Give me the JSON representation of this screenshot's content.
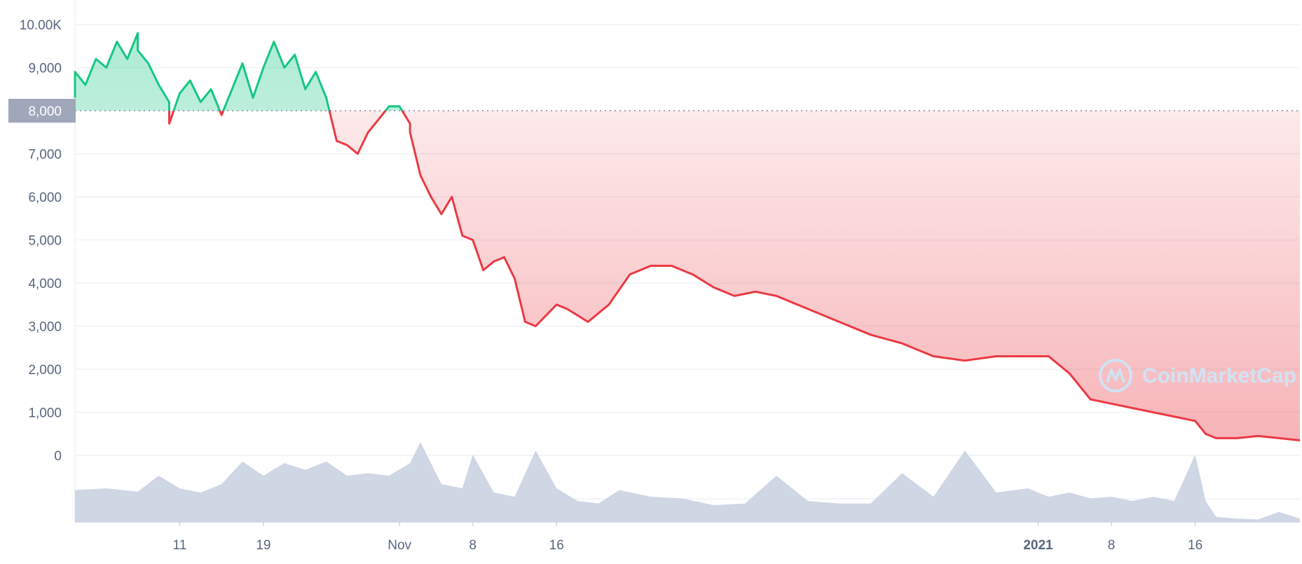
{
  "colors": {
    "up": "#16c784",
    "down": "#ea3943",
    "volume": "#cfd6e4",
    "grid": "#eff2f5",
    "tick_text": "#58667e",
    "baseline_label_bg": "#a1a7bb",
    "watermark": "#cfe3f5"
  },
  "watermark": {
    "text": "CoinMarketCap",
    "icon": "coinmarketcap-logo-icon"
  },
  "chart_data": {
    "type": "area",
    "baseline": {
      "value": 8000,
      "label": "8,000"
    },
    "ylim": [
      0,
      10000
    ],
    "y_ticks": [
      {
        "value": 10000,
        "label": "10.00K"
      },
      {
        "value": 9000,
        "label": "9,000"
      },
      {
        "value": 8000,
        "label": "8,000"
      },
      {
        "value": 7000,
        "label": "7,000"
      },
      {
        "value": 6000,
        "label": "6,000"
      },
      {
        "value": 5000,
        "label": "5,000"
      },
      {
        "value": 4000,
        "label": "4,000"
      },
      {
        "value": 3000,
        "label": "3,000"
      },
      {
        "value": 2000,
        "label": "2,000"
      },
      {
        "value": 1000,
        "label": "1,000"
      },
      {
        "value": 0,
        "label": "0"
      }
    ],
    "xlim": [
      "2020-10-01",
      "2021-01-26"
    ],
    "x_ticks": [
      {
        "date": "2020-10-11",
        "label": "11",
        "bold": false
      },
      {
        "date": "2020-10-19",
        "label": "19",
        "bold": false
      },
      {
        "date": "2020-11-01",
        "label": "Nov",
        "bold": false
      },
      {
        "date": "2020-11-08",
        "label": "8",
        "bold": false
      },
      {
        "date": "2020-11-16",
        "label": "16",
        "bold": false
      },
      {
        "date": "2021-01-01",
        "label": "2021",
        "bold": true
      },
      {
        "date": "2021-01-08",
        "label": "8",
        "bold": false
      },
      {
        "date": "2021-01-16",
        "label": "16",
        "bold": false
      }
    ],
    "price_series": {
      "dates": [
        "2020-10-01",
        "2020-10-01",
        "2020-10-02",
        "2020-10-03",
        "2020-10-04",
        "2020-10-05",
        "2020-10-06",
        "2020-10-07",
        "2020-10-07",
        "2020-10-08",
        "2020-10-09",
        "2020-10-10",
        "2020-10-10",
        "2020-10-11",
        "2020-10-12",
        "2020-10-13",
        "2020-10-14",
        "2020-10-15",
        "2020-10-16",
        "2020-10-17",
        "2020-10-18",
        "2020-10-19",
        "2020-10-20",
        "2020-10-21",
        "2020-10-22",
        "2020-10-23",
        "2020-10-24",
        "2020-10-25",
        "2020-10-26",
        "2020-10-27",
        "2020-10-28",
        "2020-10-29",
        "2020-10-30",
        "2020-10-31",
        "2020-11-01",
        "2020-11-02",
        "2020-11-02",
        "2020-11-03",
        "2020-11-04",
        "2020-11-05",
        "2020-11-06",
        "2020-11-07",
        "2020-11-08",
        "2020-11-09",
        "2020-11-10",
        "2020-11-11",
        "2020-11-12",
        "2020-11-13",
        "2020-11-14",
        "2020-11-16",
        "2020-11-17",
        "2020-11-19",
        "2020-11-21",
        "2020-11-23",
        "2020-11-25",
        "2020-11-27",
        "2020-11-29",
        "2020-12-01",
        "2020-12-03",
        "2020-12-05",
        "2020-12-07",
        "2020-12-10",
        "2020-12-13",
        "2020-12-16",
        "2020-12-19",
        "2020-12-22",
        "2020-12-25",
        "2020-12-28",
        "2020-12-31",
        "2021-01-02",
        "2021-01-04",
        "2021-01-06",
        "2021-01-08",
        "2021-01-10",
        "2021-01-12",
        "2021-01-14",
        "2021-01-16",
        "2021-01-17",
        "2021-01-18",
        "2021-01-20",
        "2021-01-22",
        "2021-01-24",
        "2021-01-26"
      ],
      "values": [
        8300,
        8900,
        8600,
        9200,
        9000,
        9600,
        9200,
        9800,
        9400,
        9100,
        8600,
        8200,
        7700,
        8400,
        8700,
        8200,
        8500,
        7900,
        8500,
        9100,
        8300,
        9000,
        9600,
        9000,
        9300,
        8500,
        8900,
        8300,
        7300,
        7200,
        7000,
        7500,
        7800,
        8100,
        8100,
        7700,
        7500,
        6500,
        6000,
        5600,
        6000,
        5100,
        5000,
        4300,
        4500,
        4600,
        4100,
        3100,
        3000,
        3500,
        3400,
        3100,
        3500,
        4200,
        4400,
        4400,
        4200,
        3900,
        3700,
        3800,
        3700,
        3400,
        3100,
        2800,
        2600,
        2300,
        2200,
        2300,
        2300,
        2300,
        1900,
        1300,
        1200,
        1100,
        1000,
        900,
        800,
        500,
        400,
        400,
        450,
        400,
        350
      ]
    },
    "volume_series": {
      "note_unit": "relative",
      "dates": [
        "2020-10-01",
        "2020-10-04",
        "2020-10-07",
        "2020-10-09",
        "2020-10-11",
        "2020-10-13",
        "2020-10-15",
        "2020-10-17",
        "2020-10-19",
        "2020-10-21",
        "2020-10-23",
        "2020-10-25",
        "2020-10-27",
        "2020-10-29",
        "2020-10-31",
        "2020-11-02",
        "2020-11-03",
        "2020-11-05",
        "2020-11-07",
        "2020-11-08",
        "2020-11-10",
        "2020-11-12",
        "2020-11-14",
        "2020-11-16",
        "2020-11-18",
        "2020-11-20",
        "2020-11-22",
        "2020-11-25",
        "2020-11-28",
        "2020-12-01",
        "2020-12-04",
        "2020-12-07",
        "2020-12-10",
        "2020-12-13",
        "2020-12-16",
        "2020-12-19",
        "2020-12-22",
        "2020-12-25",
        "2020-12-28",
        "2020-12-31",
        "2021-01-02",
        "2021-01-04",
        "2021-01-06",
        "2021-01-08",
        "2021-01-10",
        "2021-01-12",
        "2021-01-14",
        "2021-01-16",
        "2021-01-17",
        "2021-01-18",
        "2021-01-20",
        "2021-01-22",
        "2021-01-24",
        "2021-01-26"
      ],
      "values": [
        0.38,
        0.4,
        0.36,
        0.55,
        0.4,
        0.35,
        0.45,
        0.72,
        0.55,
        0.7,
        0.62,
        0.72,
        0.55,
        0.58,
        0.55,
        0.7,
        0.95,
        0.45,
        0.4,
        0.8,
        0.35,
        0.3,
        0.85,
        0.4,
        0.25,
        0.22,
        0.38,
        0.3,
        0.28,
        0.2,
        0.22,
        0.55,
        0.25,
        0.22,
        0.22,
        0.58,
        0.3,
        0.85,
        0.35,
        0.4,
        0.3,
        0.35,
        0.28,
        0.3,
        0.25,
        0.3,
        0.25,
        0.8,
        0.25,
        0.06,
        0.04,
        0.03,
        0.12,
        0.04
      ]
    }
  }
}
